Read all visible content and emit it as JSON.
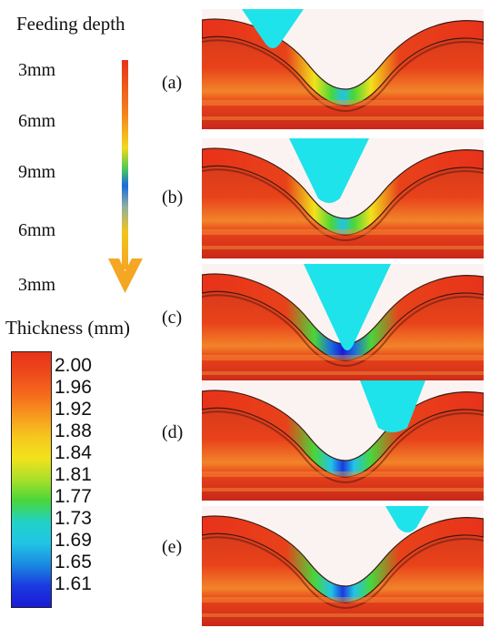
{
  "feeding": {
    "title": "Feeding depth",
    "depths": [
      "3mm",
      "6mm",
      "9mm",
      "6mm",
      "3mm"
    ]
  },
  "thickness": {
    "title": "Thickness (mm)",
    "ticks": [
      "2.00",
      "1.96",
      "1.92",
      "1.88",
      "1.84",
      "1.81",
      "1.77",
      "1.73",
      "1.69",
      "1.65",
      "1.61"
    ]
  },
  "panels": [
    {
      "label": "(a)",
      "depth_mm": 3
    },
    {
      "label": "(b)",
      "depth_mm": 6
    },
    {
      "label": "(c)",
      "depth_mm": 9
    },
    {
      "label": "(d)",
      "depth_mm": 6
    },
    {
      "label": "(e)",
      "depth_mm": 3
    }
  ],
  "colors": {
    "tool": "#1fe3ea",
    "scale": [
      "#e8321a",
      "#f56a1c",
      "#f79a1e",
      "#f2e21c",
      "#49d63a",
      "#21d2e0",
      "#1a6ae0",
      "#1a1ad6"
    ],
    "arrow_head": "#f5a623"
  }
}
